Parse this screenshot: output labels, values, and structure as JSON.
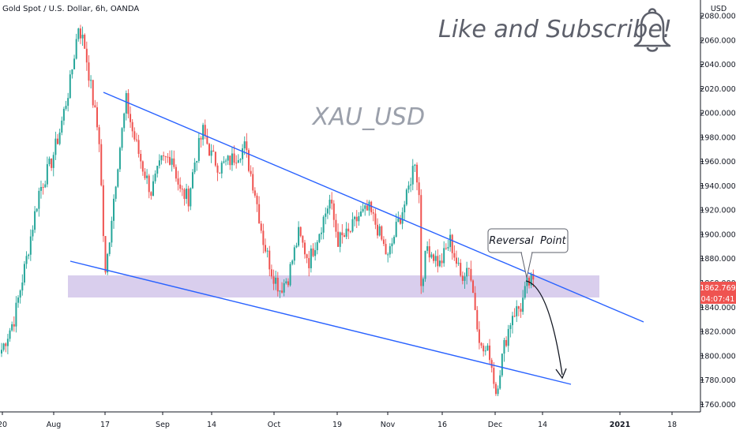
{
  "header": {
    "symbol_title": "Gold Spot / U.S. Dollar, 6h, OANDA",
    "currency": "USD"
  },
  "annotations": {
    "watermark": "XAU_USD",
    "promo": "Like and Subscribe!",
    "callout": "Reversal  Point",
    "bell_icon": "bell-icon"
  },
  "price_tags": {
    "last_price": "1862.769",
    "countdown": "04:07:41"
  },
  "colors": {
    "up": "#26a69a",
    "down": "#ef5350",
    "trendline": "#2962ff",
    "zone": "#b39ddb",
    "price_tag": "#ef5350"
  },
  "chart_data": {
    "type": "candlestick",
    "title": "Gold Spot / U.S. Dollar, 6h, OANDA",
    "ylabel": "USD",
    "ylim": [
      1755,
      2097
    ],
    "y_ticks": [
      1760,
      1780,
      1800,
      1820,
      1840,
      1860,
      1880,
      1900,
      1920,
      1940,
      1960,
      1980,
      2000,
      2020,
      2040,
      2060,
      2080
    ],
    "x_ticks": [
      "20",
      "Aug",
      "17",
      "Sep",
      "14",
      "Oct",
      "19",
      "Nov",
      "16",
      "Dec",
      "14",
      "2021",
      "18"
    ],
    "grid": false,
    "path": [
      [
        0,
        1805
      ],
      [
        6,
        1830
      ],
      [
        12,
        1880
      ],
      [
        18,
        1935
      ],
      [
        24,
        1960
      ],
      [
        28,
        1985
      ],
      [
        33,
        2025
      ],
      [
        37,
        2072
      ],
      [
        40,
        2055
      ],
      [
        44,
        2010
      ],
      [
        47,
        1978
      ],
      [
        49,
        1900
      ],
      [
        50,
        1865
      ],
      [
        53,
        1915
      ],
      [
        56,
        1960
      ],
      [
        60,
        2010
      ],
      [
        63,
        1985
      ],
      [
        68,
        1955
      ],
      [
        72,
        1935
      ],
      [
        77,
        1960
      ],
      [
        82,
        1965
      ],
      [
        86,
        1935
      ],
      [
        90,
        1930
      ],
      [
        93,
        1960
      ],
      [
        97,
        1985
      ],
      [
        101,
        1965
      ],
      [
        105,
        1955
      ],
      [
        111,
        1962
      ],
      [
        117,
        1972
      ],
      [
        122,
        1935
      ],
      [
        126,
        1895
      ],
      [
        130,
        1870
      ],
      [
        134,
        1855
      ],
      [
        138,
        1865
      ],
      [
        143,
        1900
      ],
      [
        148,
        1878
      ],
      [
        153,
        1903
      ],
      [
        158,
        1928
      ],
      [
        162,
        1895
      ],
      [
        167,
        1900
      ],
      [
        172,
        1915
      ],
      [
        177,
        1920
      ],
      [
        181,
        1905
      ],
      [
        186,
        1880
      ],
      [
        190,
        1905
      ],
      [
        195,
        1930
      ],
      [
        199,
        1962
      ],
      [
        201,
        1932
      ],
      [
        202,
        1860
      ],
      [
        205,
        1890
      ],
      [
        211,
        1875
      ],
      [
        216,
        1895
      ],
      [
        221,
        1865
      ],
      [
        225,
        1875
      ],
      [
        228,
        1840
      ],
      [
        231,
        1805
      ],
      [
        235,
        1802
      ],
      [
        238,
        1770
      ],
      [
        242,
        1808
      ],
      [
        246,
        1835
      ],
      [
        250,
        1840
      ],
      [
        253,
        1858
      ],
      [
        256,
        1862.769
      ]
    ],
    "candles_per_label": {
      "20": 0,
      "Aug": 24,
      "17": 48,
      "Sep": 72,
      "14": 96,
      "Oct": 128,
      "19": 156,
      "Nov": 180,
      "16": 204,
      "Dec": 232,
      "2021": 289
    }
  }
}
